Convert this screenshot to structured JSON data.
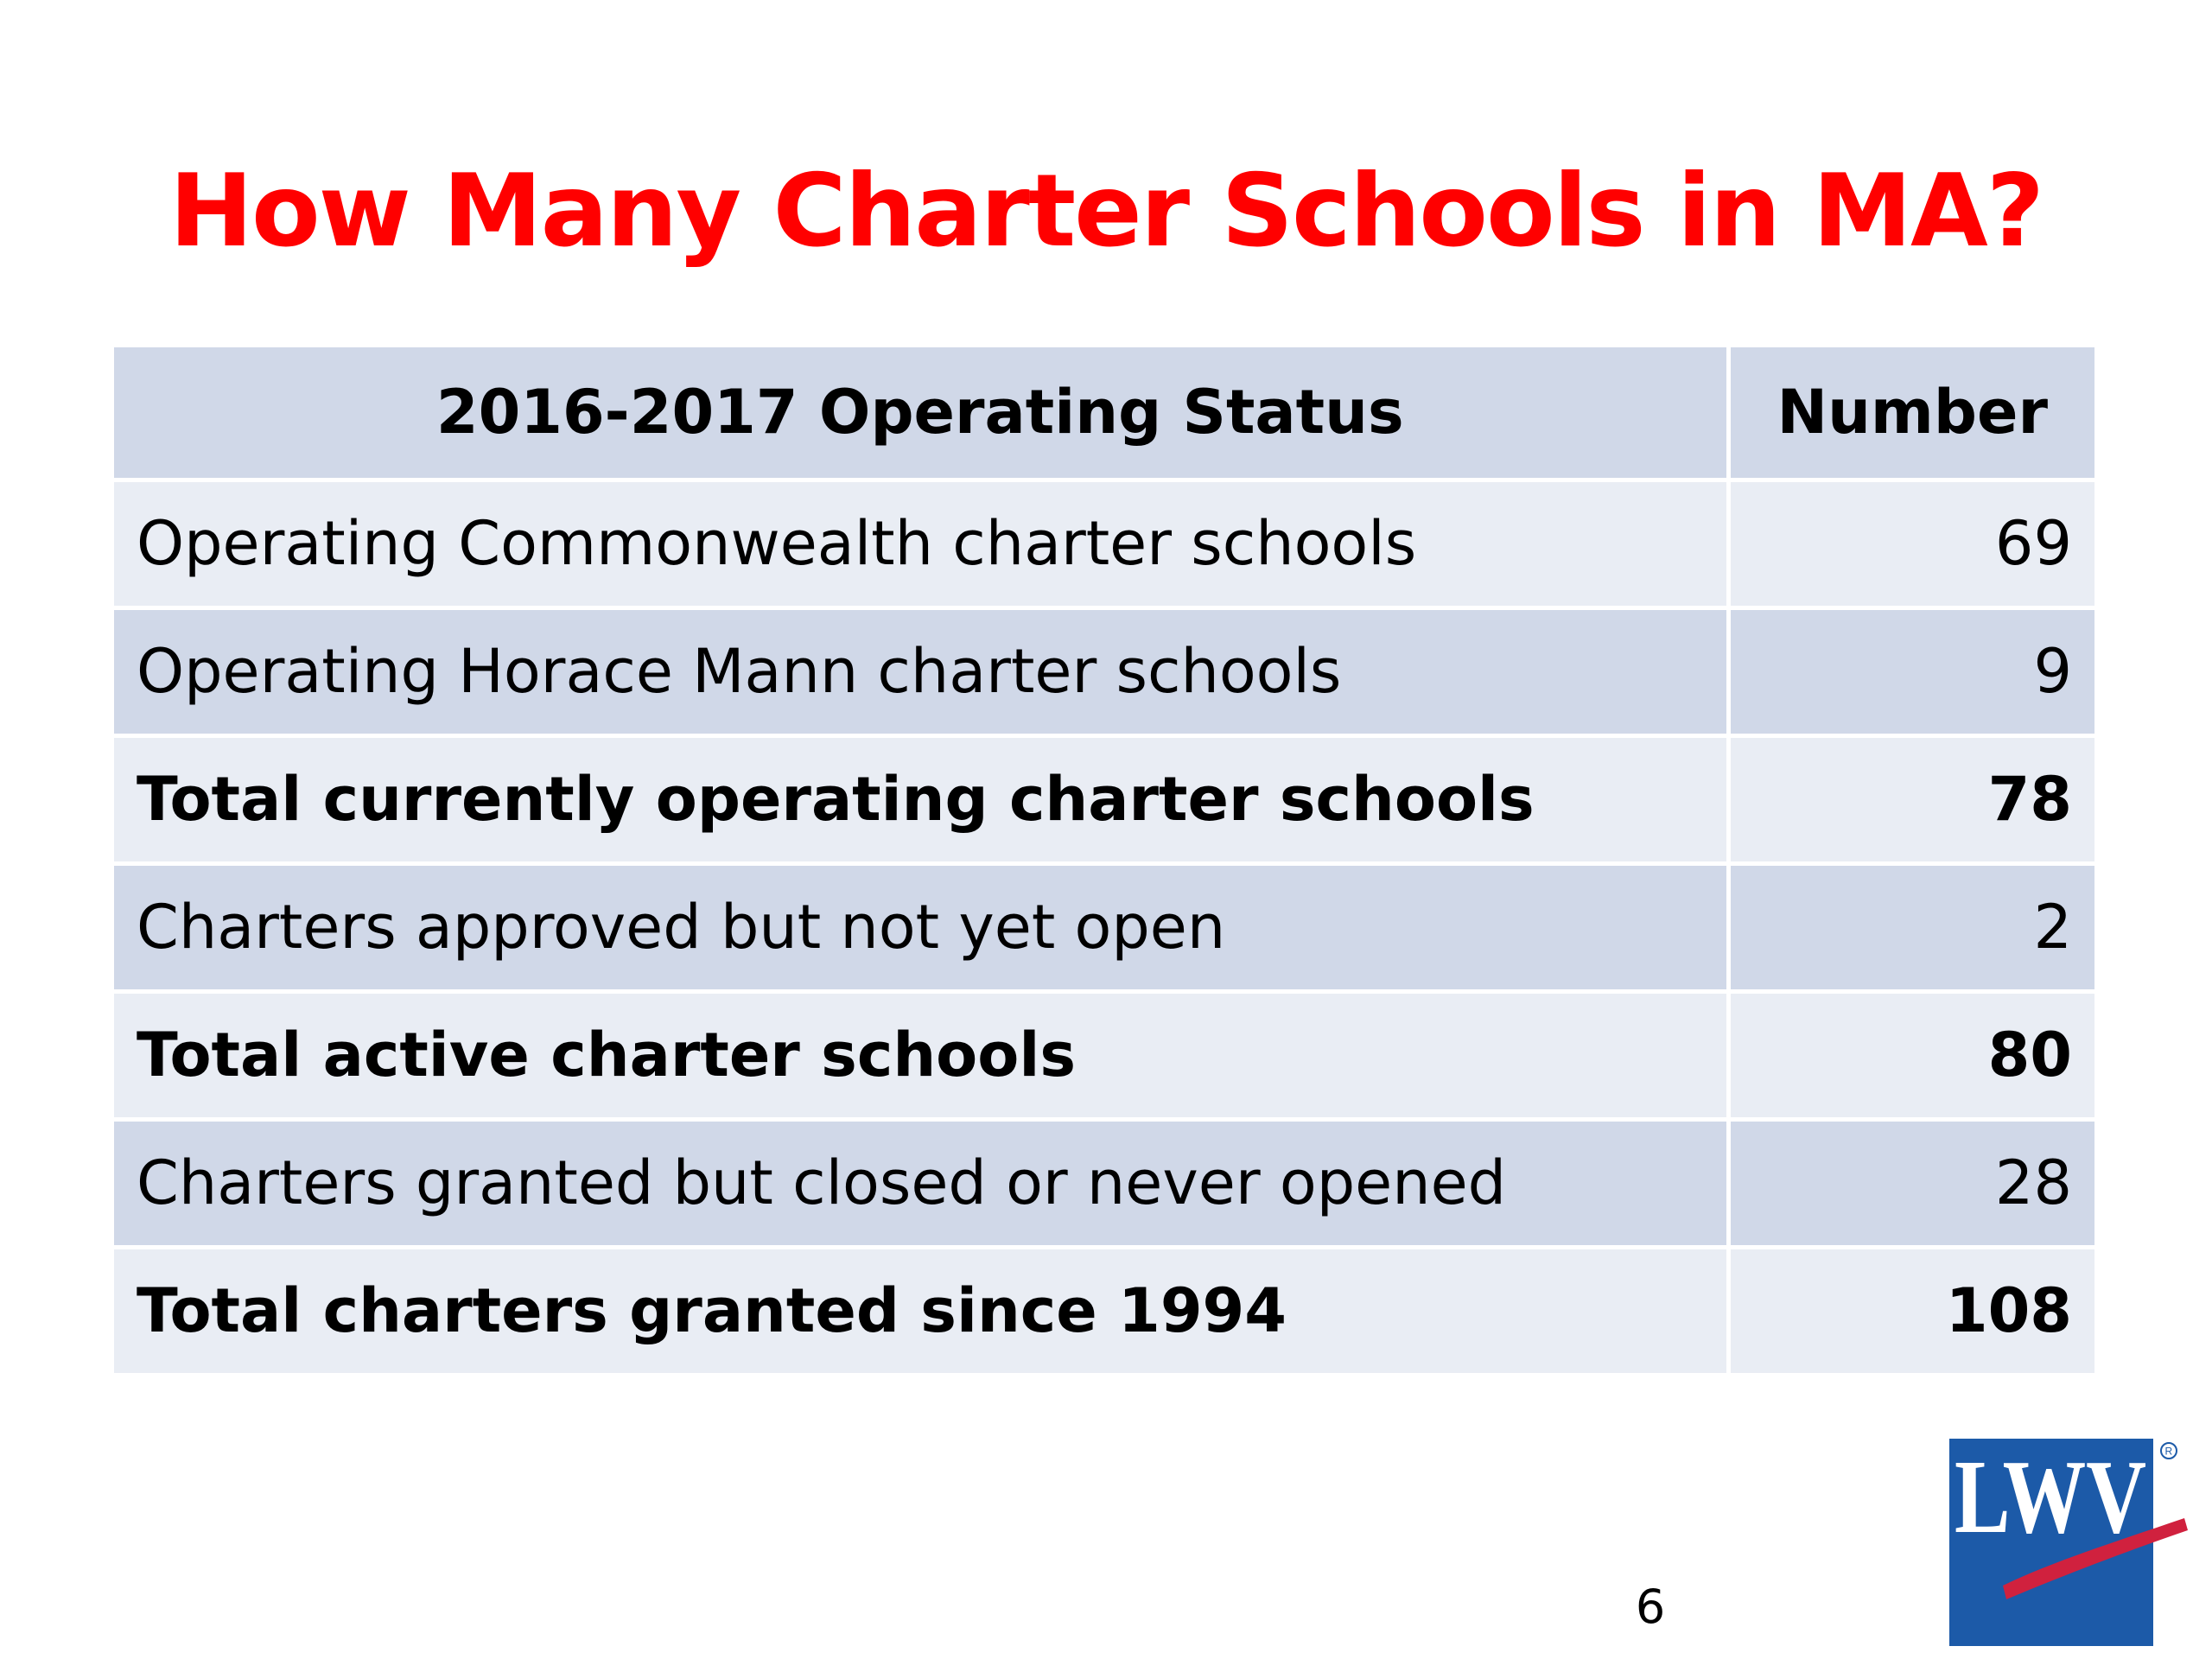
{
  "slide": {
    "title": "How Many Charter Schools in MA?",
    "page_number": "6"
  },
  "table": {
    "headers": [
      "2016-2017 Operating Status",
      "Number"
    ],
    "rows": [
      {
        "label": "Operating Commonwealth charter schools",
        "value": "69",
        "bold": false
      },
      {
        "label": "Operating Horace Mann charter schools",
        "value": "9",
        "bold": false
      },
      {
        "label": "Total currently operating charter schools",
        "value": "78",
        "bold": true
      },
      {
        "label": "Charters approved but not yet open",
        "value": "2",
        "bold": false
      },
      {
        "label": "Total active charter schools",
        "value": "80",
        "bold": true
      },
      {
        "label": "Charters granted but closed or never opened",
        "value": "28",
        "bold": false
      },
      {
        "label": "Total charters granted since 1994",
        "value": "108",
        "bold": true
      }
    ]
  },
  "logo": {
    "text": "LWV",
    "icon": "lwv-logo-icon",
    "colors": {
      "blue": "#1c5aa8",
      "red": "#d0213e"
    }
  },
  "colors": {
    "title": "#ff0000",
    "header_fill": "#d0d8e8",
    "row_light": "#e9edf4",
    "row_dark": "#d0d8e8"
  }
}
